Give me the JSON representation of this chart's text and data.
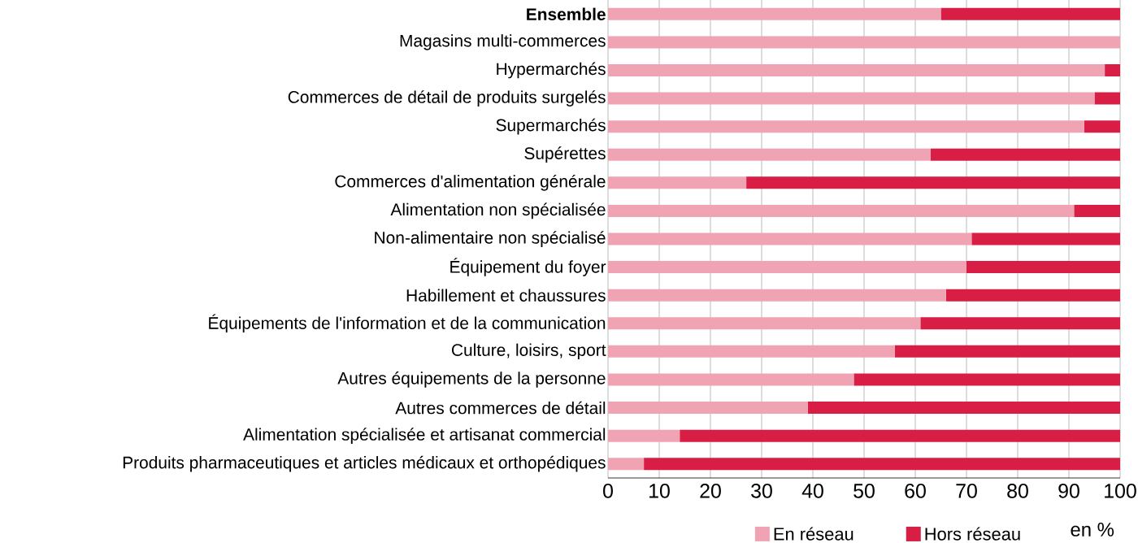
{
  "chart_data": {
    "type": "bar",
    "orientation": "horizontal",
    "stacked": true,
    "categories": [
      "**Ensemble**",
      "Magasins multi-commerces",
      "Hypermarchés",
      "Commerces de détail de produits surgelés",
      "Supermarchés",
      "Supérettes",
      "Commerces d'alimentation générale",
      "Alimentation non spécialisée",
      "Non-alimentaire non spécialisé",
      "Équipement du foyer",
      "Habillement et chaussures",
      "Équipements de l'information et de la communication",
      "Culture, loisirs, sport",
      "Autres équipements de la personne",
      "Autres commerces de détail",
      "Alimentation spécialisée et artisanat commercial",
      "Produits pharmaceutiques et articles médicaux et orthopédiques"
    ],
    "series": [
      {
        "name": "En réseau",
        "color": "#f0a3b3",
        "values": [
          65,
          100,
          97,
          95,
          93,
          63,
          27,
          91,
          71,
          70,
          66,
          61,
          56,
          48,
          39,
          14,
          7
        ]
      },
      {
        "name": "Hors réseau",
        "color": "#d81e45",
        "values": [
          35,
          0,
          3,
          5,
          7,
          37,
          73,
          9,
          29,
          30,
          34,
          39,
          44,
          52,
          61,
          86,
          93
        ]
      }
    ],
    "xlim": [
      0,
      100
    ],
    "xticks": [
      0,
      10,
      20,
      30,
      40,
      50,
      60,
      70,
      80,
      90,
      100
    ],
    "xlabel": "en %",
    "grid": "x",
    "legend": "bottom"
  }
}
